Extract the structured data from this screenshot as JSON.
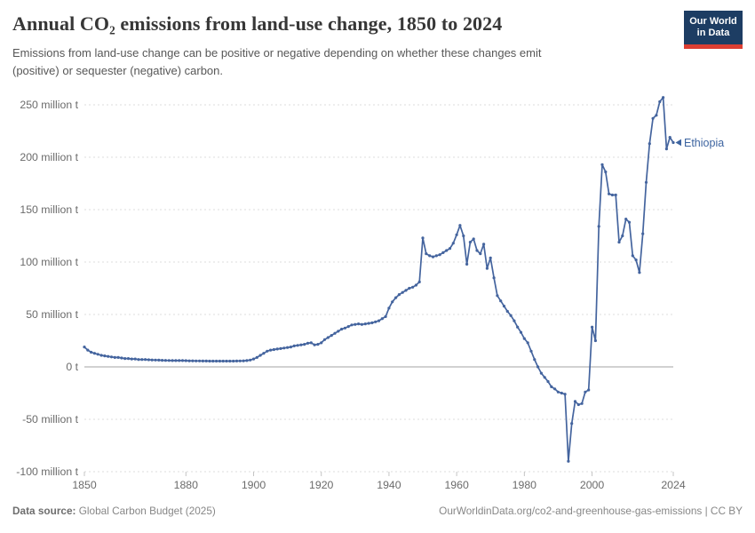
{
  "header": {
    "title": "Annual CO₂ emissions from land-use change, 1850 to 2024",
    "subtitle": "Emissions from land-use change can be positive or negative depending on whether these changes emit\n(positive) or sequester (negative) carbon.",
    "logo_text": "Our World\nin Data"
  },
  "footer": {
    "source_label": "Data source:",
    "source_value": " Global Carbon Budget (2025)",
    "citation": "OurWorldinData.org/co2-and-greenhouse-gas-emissions | CC BY"
  },
  "colors": {
    "line": "#44649e",
    "end_label": "#3d64a0",
    "grid": "#dcdcdc",
    "zero_line": "#a3a3a3",
    "axis_text": "#6b6b6b",
    "logo_bg": "#1d3d63",
    "logo_red": "#dc3e32"
  },
  "chart_data": {
    "type": "line",
    "title": "Annual CO₂ emissions from land-use change, 1850 to 2024",
    "unit": "million t",
    "series_name": "Ethiopia",
    "end_label": "Ethiopia",
    "xlim": [
      1850,
      2024
    ],
    "ylim": [
      -100,
      250
    ],
    "grid": "dashed-horizontal",
    "legend_position": "line-end",
    "x_ticks": [
      1850,
      1880,
      1900,
      1920,
      1940,
      1960,
      1980,
      2000,
      2024
    ],
    "y_ticks": [
      {
        "value": 250,
        "label": "250 million t"
      },
      {
        "value": 200,
        "label": "200 million t"
      },
      {
        "value": 150,
        "label": "150 million t"
      },
      {
        "value": 100,
        "label": "100 million t"
      },
      {
        "value": 50,
        "label": "50 million t"
      },
      {
        "value": 0,
        "label": "0 t"
      },
      {
        "value": -50,
        "label": "-50 million t"
      },
      {
        "value": -100,
        "label": "-100 million t"
      }
    ],
    "x_start_year": 1850,
    "values": [
      19,
      16,
      14,
      13,
      12,
      11,
      10.5,
      10,
      9.5,
      9,
      9,
      8.5,
      8,
      8,
      7.5,
      7.5,
      7,
      7,
      7,
      6.8,
      6.6,
      6.5,
      6.4,
      6.3,
      6.2,
      6.1,
      6,
      6,
      6,
      6,
      5.9,
      5.8,
      5.8,
      5.7,
      5.7,
      5.6,
      5.6,
      5.5,
      5.5,
      5.5,
      5.5,
      5.5,
      5.5,
      5.5,
      5.5,
      5.6,
      5.7,
      5.8,
      6,
      6.5,
      7.5,
      9,
      11,
      13,
      15,
      16,
      16.5,
      17,
      17.5,
      18,
      18.5,
      19,
      20,
      20.5,
      21,
      21.5,
      22.5,
      23,
      21,
      21.5,
      23,
      26,
      28,
      30,
      32,
      34,
      36,
      37,
      38.5,
      40,
      40.5,
      41,
      40.5,
      41,
      41.5,
      42,
      43,
      44,
      46,
      48,
      56,
      62,
      66,
      69,
      71,
      73,
      75,
      76,
      78,
      81,
      123,
      108,
      106,
      105,
      106,
      107,
      109,
      111,
      113,
      118,
      126,
      135,
      125,
      98,
      119,
      122,
      111,
      108,
      117,
      94,
      104,
      85,
      68,
      63,
      58,
      53,
      49,
      44,
      38,
      33,
      27,
      23,
      15,
      7,
      0,
      -6,
      -10,
      -14,
      -19,
      -21,
      -24,
      -25,
      -26,
      -90,
      -54,
      -33,
      -36,
      -35,
      -24,
      -22,
      38,
      25,
      134,
      193,
      186,
      165,
      164,
      164,
      119,
      125,
      141,
      138,
      106,
      102,
      90,
      127,
      176,
      213,
      237,
      240,
      253,
      257,
      208,
      219,
      214
    ]
  }
}
